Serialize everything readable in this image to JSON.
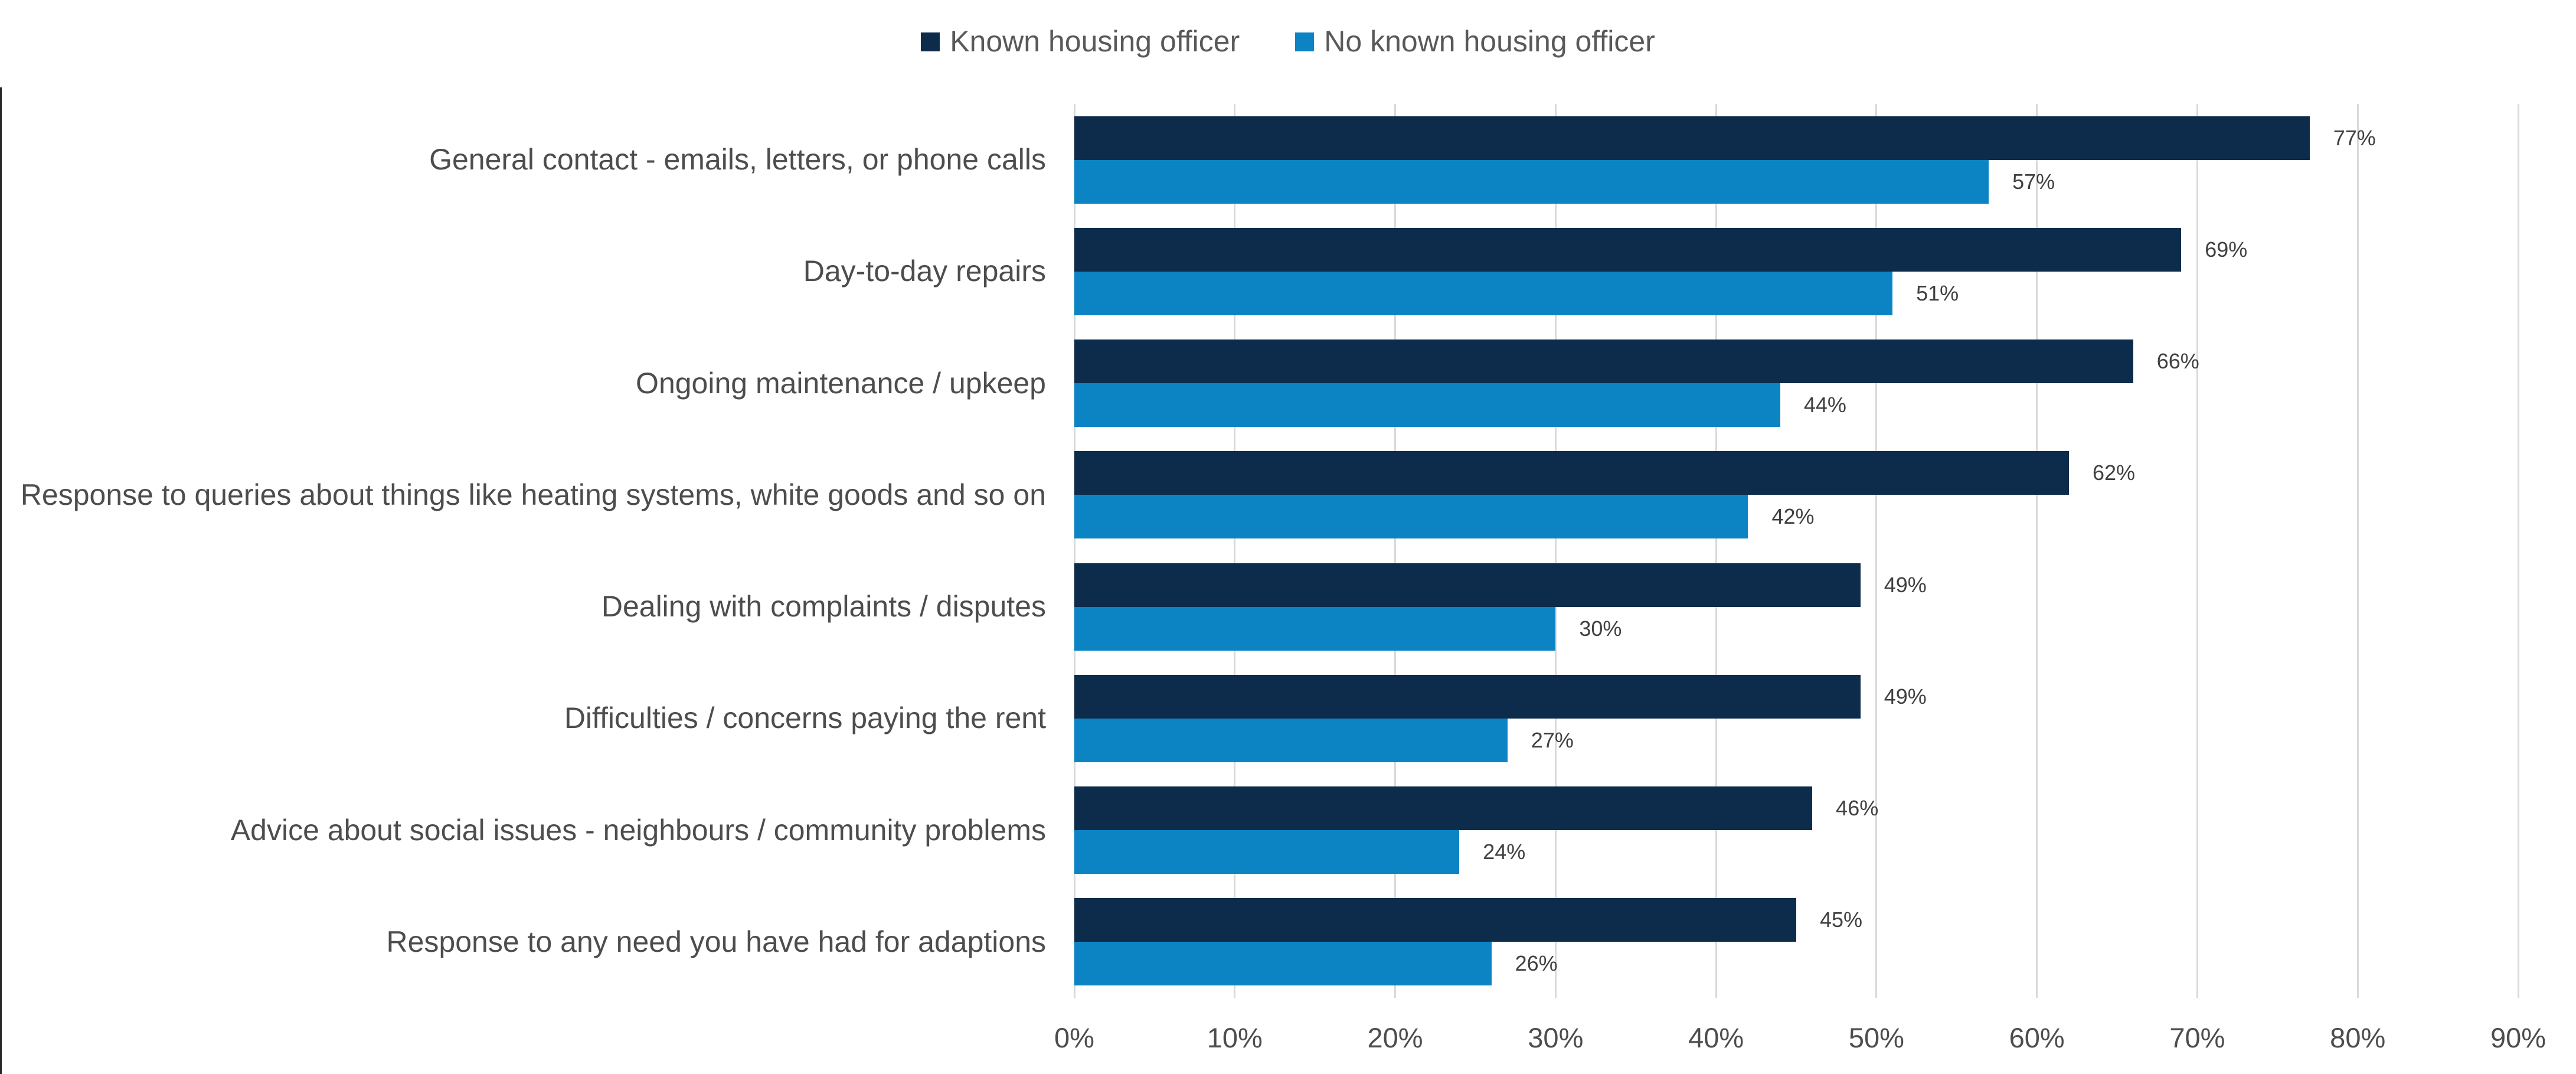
{
  "chart_data": {
    "type": "bar",
    "orientation": "horizontal",
    "title": "",
    "categories": [
      "General contact - emails, letters, or phone calls",
      "Day-to-day repairs",
      "Ongoing maintenance / upkeep",
      "Response to queries about things like heating systems, white goods and so on",
      "Dealing with complaints / disputes",
      "Difficulties / concerns paying the rent",
      "Advice about social issues - neighbours / community problems",
      "Response to any need you have had for adaptions"
    ],
    "series": [
      {
        "name": "Known housing officer",
        "color": "#0D2B4B",
        "values": [
          77,
          69,
          66,
          62,
          49,
          49,
          46,
          45
        ]
      },
      {
        "name": "No known housing officer",
        "color": "#0C84C4",
        "values": [
          57,
          51,
          44,
          42,
          30,
          27,
          24,
          26
        ]
      }
    ],
    "value_suffix": "%",
    "xlim": [
      0,
      90
    ],
    "x_ticks": [
      "0%",
      "10%",
      "20%",
      "30%",
      "40%",
      "50%",
      "60%",
      "70%",
      "80%",
      "90%"
    ],
    "grid": "vertical-only",
    "gridline_color": "#D9D9D9",
    "legend_position": "top-center",
    "data_labels": "outside-end",
    "text_colors": {
      "axis": "#4d4d4d",
      "legend": "#595959",
      "data_label": "#404040"
    }
  }
}
